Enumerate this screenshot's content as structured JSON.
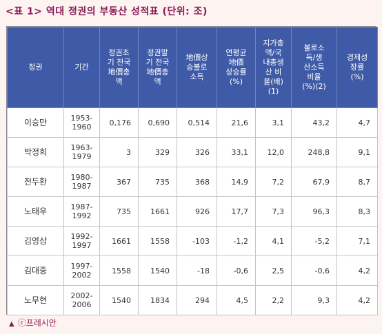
{
  "title": "<표 1> 역대 정권의 부동산 성적표  (단위: 조)",
  "columns": [
    "정권",
    "기간",
    "정권초\n기 전국\n地價총\n액",
    "정권말\n기 전국\n地價총\n액",
    "地價상\n승불로\n소득",
    "연평균\n地價\n상승률\n(%)",
    "지가총\n액/국\n내총생\n산 비\n율(배)\n(1)",
    "불로소\n득/생\n산소득\n비율\n(%)(2)",
    "경제성\n장률\n(%)"
  ],
  "rows": [
    [
      "이승만",
      "1953-\n1960",
      "0,176",
      "0,690",
      "0,514",
      "21,6",
      "3,1",
      "43,2",
      "4,7"
    ],
    [
      "박정희",
      "1963-\n1979",
      "3",
      "329",
      "326",
      "33,1",
      "12,0",
      "248,8",
      "9,1"
    ],
    [
      "전두환",
      "1980-\n1987",
      "367",
      "735",
      "368",
      "14,9",
      "7,2",
      "67,9",
      "8,7"
    ],
    [
      "노태우",
      "1987-\n1992",
      "735",
      "1661",
      "926",
      "17,7",
      "7,3",
      "96,3",
      "8,3"
    ],
    [
      "김영삼",
      "1992-\n1997",
      "1661",
      "1558",
      "-103",
      "-1,2",
      "4,1",
      "-5,2",
      "7,1"
    ],
    [
      "김대중",
      "1997-\n2002",
      "1558",
      "1540",
      "-18",
      "-0,6",
      "2,5",
      "-0,6",
      "4,2"
    ],
    [
      "노무현",
      "2002-\n2006",
      "1540",
      "1834",
      "294",
      "4,5",
      "2,2",
      "9,3",
      "4,2"
    ]
  ],
  "source": "ⓒ프레시안",
  "source_icon": "triangle-up-icon",
  "colors": {
    "header_bg": "#3f5ba7",
    "title": "#8a1a55",
    "background": "#fdf3f1"
  }
}
